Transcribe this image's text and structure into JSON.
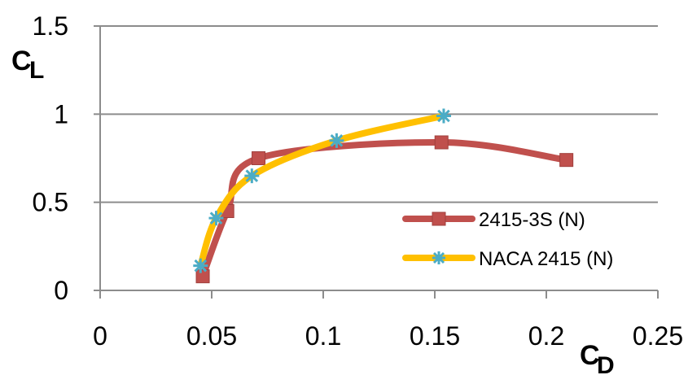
{
  "chart_data": {
    "type": "line",
    "title": "",
    "xlabel": {
      "main": "C",
      "sub": "D"
    },
    "ylabel": {
      "main": "C",
      "sub": "L"
    },
    "xlim": [
      0,
      0.25
    ],
    "ylim": [
      0,
      1.5
    ],
    "x_ticks": [
      "0",
      "0.05",
      "0.1",
      "0.15",
      "0.2",
      "0.25"
    ],
    "x_tick_values": [
      0,
      0.05,
      0.1,
      0.15,
      0.2,
      0.25
    ],
    "y_ticks": [
      "0",
      "0.5",
      "1",
      "1.5"
    ],
    "y_tick_values": [
      0,
      0.5,
      1,
      1.5
    ],
    "grid": "horizontal",
    "legend_position": "lower-right",
    "series": [
      {
        "name": "2415-3S (N)",
        "color": "#c0504d",
        "marker": "square",
        "x": [
          0.046,
          0.057,
          0.071,
          0.153,
          0.209
        ],
        "y": [
          0.08,
          0.45,
          0.75,
          0.84,
          0.74
        ]
      },
      {
        "name": "NACA 2415 (N)",
        "color": "#ffc000",
        "marker_color": "#4bacc6",
        "marker": "asterisk",
        "x": [
          0.045,
          0.052,
          0.068,
          0.106,
          0.154
        ],
        "y": [
          0.14,
          0.41,
          0.65,
          0.85,
          0.99
        ]
      }
    ]
  }
}
